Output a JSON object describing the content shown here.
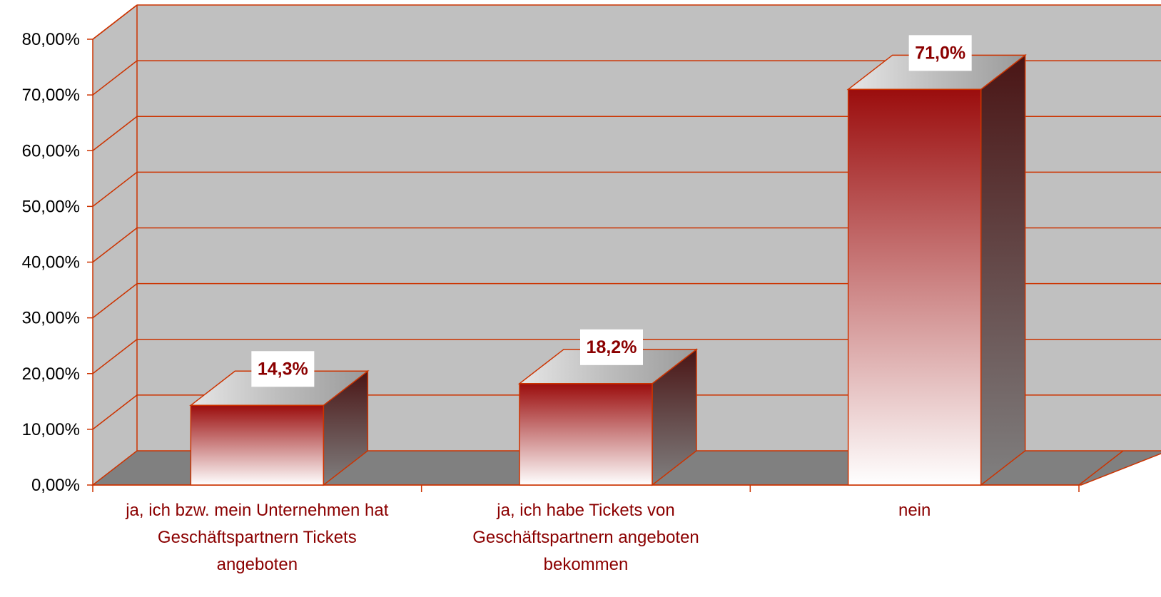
{
  "chart_data": {
    "type": "bar",
    "categories": [
      [
        "ja, ich bzw. mein Unternehmen hat",
        "Geschäftspartnern Tickets",
        "angeboten"
      ],
      [
        "ja, ich habe Tickets von",
        "Geschäftspartnern angeboten",
        "bekommen"
      ],
      [
        "nein"
      ]
    ],
    "values": [
      14.3,
      18.2,
      71.0
    ],
    "data_labels": [
      "14,3%",
      "18,2%",
      "71,0%"
    ],
    "y_ticks": [
      "0,00%",
      "10,00%",
      "20,00%",
      "30,00%",
      "40,00%",
      "50,00%",
      "60,00%",
      "70,00%",
      "80,00%"
    ],
    "ylim": [
      0,
      80
    ],
    "grid": true,
    "style": "3d-column",
    "colors": {
      "bar_top": "#9b0d0d",
      "bar_bottom": "#ffffff",
      "side_top": "#4a1515",
      "side_bottom": "#808080",
      "edge": "#cc3300",
      "wall": "#c0c0c0",
      "floor": "#808080",
      "label_text": "#8b0000"
    }
  }
}
